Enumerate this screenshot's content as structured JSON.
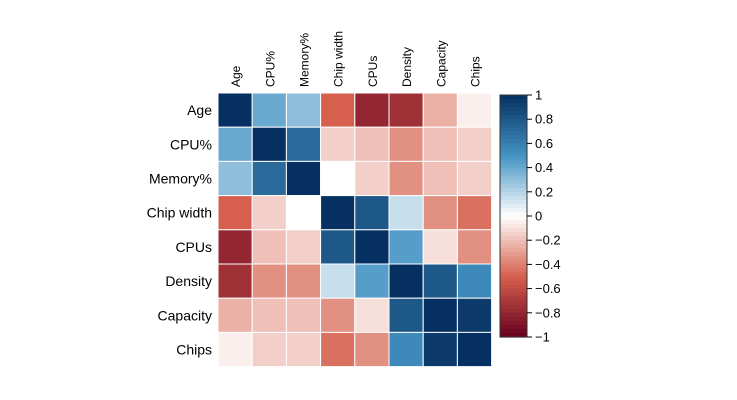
{
  "chart_data": {
    "type": "heatmap",
    "variables": [
      "Age",
      "CPU%",
      "Memory%",
      "Chip width",
      "CPUs",
      "Density",
      "Capacity",
      "Chips"
    ],
    "matrix": [
      [
        1.0,
        0.4,
        0.3,
        -0.5,
        -0.8,
        -0.75,
        -0.25,
        -0.05
      ],
      [
        0.4,
        1.0,
        0.7,
        -0.15,
        -0.2,
        -0.35,
        -0.2,
        -0.15
      ],
      [
        0.3,
        0.7,
        1.0,
        0.0,
        -0.15,
        -0.35,
        -0.2,
        -0.15
      ],
      [
        -0.5,
        -0.15,
        0.0,
        1.0,
        0.8,
        0.15,
        -0.35,
        -0.45
      ],
      [
        -0.8,
        -0.2,
        -0.15,
        0.8,
        1.0,
        0.45,
        -0.1,
        -0.35
      ],
      [
        -0.75,
        -0.35,
        -0.35,
        0.15,
        0.45,
        1.0,
        0.8,
        0.55
      ],
      [
        -0.25,
        -0.2,
        -0.2,
        -0.35,
        -0.1,
        0.8,
        1.0,
        0.95
      ],
      [
        -0.05,
        -0.15,
        -0.15,
        -0.45,
        -0.35,
        0.55,
        0.95,
        1.0
      ]
    ],
    "colorbar": {
      "range": [
        -1,
        1
      ],
      "ticks": [
        1,
        0.8,
        0.6,
        0.4,
        0.2,
        0,
        -0.2,
        -0.4,
        -0.6,
        -0.8,
        -1
      ],
      "tick_labels": [
        "1",
        "0.8",
        "0.6",
        "0.4",
        "0.2",
        "0",
        "−0.2",
        "−0.4",
        "−0.6",
        "−0.8",
        "−1"
      ],
      "colors": {
        "neg_max": "#67001f",
        "neg_mid": "#d6604d",
        "neutral": "#ffffff",
        "pos_mid": "#4393c3",
        "pos_max": "#053061"
      }
    },
    "title": "",
    "xlabel": "",
    "ylabel": ""
  }
}
